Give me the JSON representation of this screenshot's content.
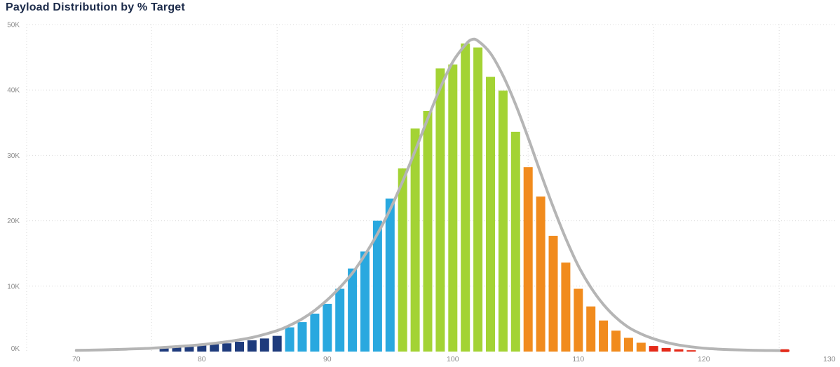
{
  "chart_data": {
    "type": "bar",
    "title": "Payload Distribution by % Target",
    "xlabel": "",
    "ylabel": "",
    "x_tick_labels": [
      "70",
      "80",
      "90",
      "100",
      "110",
      "120",
      "130"
    ],
    "x_tick_values": [
      70,
      80,
      90,
      100,
      110,
      120,
      130
    ],
    "y_tick_labels": [
      "0K",
      "10K",
      "20K",
      "30K",
      "40K",
      "50K"
    ],
    "y_tick_values": [
      0,
      10000,
      20000,
      30000,
      40000,
      50000
    ],
    "xlim": [
      66,
      131
    ],
    "ylim": [
      0,
      50000
    ],
    "grid": "dotted",
    "x_reference_lines": [
      76,
      86,
      96,
      106,
      116,
      126
    ],
    "segments": [
      {
        "name": "far-below-target",
        "from": 77,
        "to": 86,
        "color": "#1e3b7c"
      },
      {
        "name": "below-target",
        "from": 87,
        "to": 95,
        "color": "#29a8df"
      },
      {
        "name": "on-target",
        "from": 96,
        "to": 105,
        "color": "#a3d334"
      },
      {
        "name": "above-target",
        "from": 106,
        "to": 115,
        "color": "#f18b1d"
      },
      {
        "name": "far-above-target",
        "from": 116,
        "to": 119,
        "color": "#e42918"
      }
    ],
    "bars": [
      {
        "x": 77,
        "value": 500
      },
      {
        "x": 78,
        "value": 620
      },
      {
        "x": 79,
        "value": 760
      },
      {
        "x": 80,
        "value": 1000
      },
      {
        "x": 81,
        "value": 1120
      },
      {
        "x": 82,
        "value": 1260
      },
      {
        "x": 83,
        "value": 1500
      },
      {
        "x": 84,
        "value": 1720
      },
      {
        "x": 85,
        "value": 2000
      },
      {
        "x": 86,
        "value": 2400
      },
      {
        "x": 87,
        "value": 3700
      },
      {
        "x": 88,
        "value": 4500
      },
      {
        "x": 89,
        "value": 5800
      },
      {
        "x": 90,
        "value": 7300
      },
      {
        "x": 91,
        "value": 9600
      },
      {
        "x": 92,
        "value": 12700
      },
      {
        "x": 93,
        "value": 15300
      },
      {
        "x": 94,
        "value": 20000
      },
      {
        "x": 95,
        "value": 23400
      },
      {
        "x": 96,
        "value": 28000
      },
      {
        "x": 97,
        "value": 34100
      },
      {
        "x": 98,
        "value": 36800
      },
      {
        "x": 99,
        "value": 43300
      },
      {
        "x": 100,
        "value": 43900
      },
      {
        "x": 101,
        "value": 47100
      },
      {
        "x": 102,
        "value": 46500
      },
      {
        "x": 103,
        "value": 42000
      },
      {
        "x": 104,
        "value": 39900
      },
      {
        "x": 105,
        "value": 33600
      },
      {
        "x": 106,
        "value": 28200
      },
      {
        "x": 107,
        "value": 23700
      },
      {
        "x": 108,
        "value": 17700
      },
      {
        "x": 109,
        "value": 13600
      },
      {
        "x": 110,
        "value": 9600
      },
      {
        "x": 111,
        "value": 6900
      },
      {
        "x": 112,
        "value": 4750
      },
      {
        "x": 113,
        "value": 3200
      },
      {
        "x": 114,
        "value": 2100
      },
      {
        "x": 115,
        "value": 1350
      },
      {
        "x": 116,
        "value": 850
      },
      {
        "x": 117,
        "value": 550
      },
      {
        "x": 118,
        "value": 350
      },
      {
        "x": 119,
        "value": 200
      }
    ],
    "curve": {
      "name": "distribution-fit-curve",
      "color": "#b5b5b5",
      "end_cap_color": "#e42918",
      "points": [
        [
          70,
          180
        ],
        [
          72,
          260
        ],
        [
          74,
          370
        ],
        [
          76,
          520
        ],
        [
          78,
          760
        ],
        [
          80,
          1060
        ],
        [
          82,
          1500
        ],
        [
          84,
          2150
        ],
        [
          86,
          3200
        ],
        [
          87,
          4000
        ],
        [
          88,
          5000
        ],
        [
          89,
          6300
        ],
        [
          90,
          7900
        ],
        [
          91,
          9800
        ],
        [
          92,
          12000
        ],
        [
          93,
          14800
        ],
        [
          94,
          18000
        ],
        [
          95,
          21700
        ],
        [
          96,
          26000
        ],
        [
          97,
          30700
        ],
        [
          98,
          35600
        ],
        [
          99,
          40300
        ],
        [
          100,
          44300
        ],
        [
          101,
          46900
        ],
        [
          101.5,
          47700
        ],
        [
          102,
          47500
        ],
        [
          103,
          45600
        ],
        [
          104,
          42200
        ],
        [
          105,
          37800
        ],
        [
          106,
          32700
        ],
        [
          107,
          27300
        ],
        [
          108,
          22100
        ],
        [
          109,
          17300
        ],
        [
          110,
          13100
        ],
        [
          111,
          9800
        ],
        [
          112,
          7200
        ],
        [
          113,
          5200
        ],
        [
          114,
          3700
        ],
        [
          115,
          2700
        ],
        [
          116,
          1950
        ],
        [
          117,
          1400
        ],
        [
          118,
          1000
        ],
        [
          119,
          720
        ],
        [
          120,
          520
        ],
        [
          121,
          390
        ],
        [
          122,
          300
        ],
        [
          123,
          240
        ],
        [
          124,
          195
        ],
        [
          125,
          165
        ],
        [
          126,
          145
        ],
        [
          126.6,
          135
        ]
      ]
    },
    "colors": {
      "title": "#1c2b4a",
      "axis_label": "#8a8a8a",
      "gridline": "#d9d9d9"
    }
  }
}
